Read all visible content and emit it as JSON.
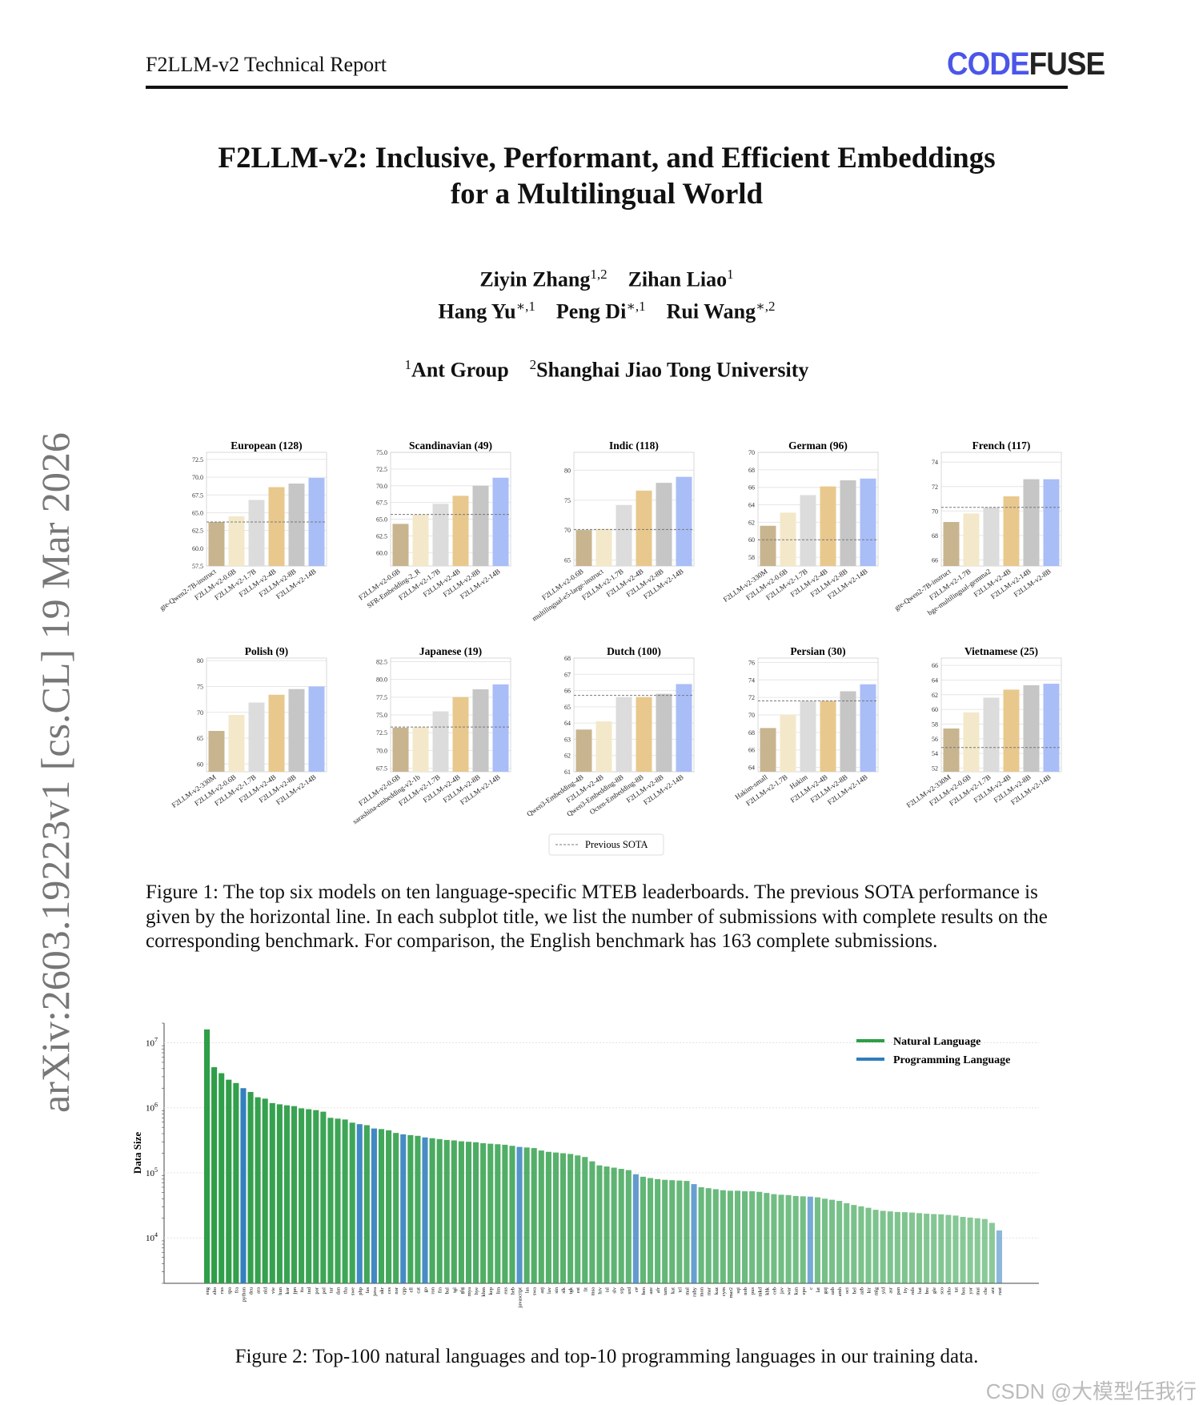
{
  "header": {
    "left": "F2LLM-v2 Technical Report",
    "logo_part1": "CODE",
    "logo_part2": "FUSE"
  },
  "title": {
    "line1": "F2LLM-v2: Inclusive, Performant, and Efficient Embeddings",
    "line2": "for a Multilingual World"
  },
  "authors": {
    "row1": [
      {
        "name": "Ziyin Zhang",
        "sup": "1,2"
      },
      {
        "name": "Zihan Liao",
        "sup": "1"
      }
    ],
    "row2": [
      {
        "name": "Hang Yu",
        "sup": "∗,1"
      },
      {
        "name": "Peng Di",
        "sup": "∗,1"
      },
      {
        "name": "Rui Wang",
        "sup": "∗,2"
      }
    ],
    "affiliations": [
      {
        "sup": "1",
        "name": "Ant Group"
      },
      {
        "sup": "2",
        "name": "Shanghai Jiao Tong University"
      }
    ]
  },
  "arxiv_id": "arXiv:2603.19223v1  [cs.CL]  19 Mar 2026",
  "figure1": {
    "legend": "Previous SOTA",
    "caption": "Figure 1: The top six models on ten language-specific MTEB leaderboards. The previous SOTA performance is given by the horizontal line. In each subplot title, we list the number of submissions with complete results on the corresponding benchmark. For comparison, the English benchmark has 163 complete submissions."
  },
  "figure2": {
    "caption": "Figure 2: Top-100 natural languages and top-10 programming languages in our training data."
  },
  "watermark": "CSDN @大模型任我行",
  "colors": {
    "bar_colors": [
      "#c8b58f",
      "#f3e8c9",
      "#dcdcdc",
      "#e8c88d",
      "#c6c6c6",
      "#a9bef7"
    ],
    "natural": "#2e9e48",
    "programming": "#2f7dbd"
  },
  "chart_data": [
    {
      "type": "bar",
      "title": "European (128)",
      "categories": [
        "gte-Qwen2-7B-instruct",
        "F2LLM-v2-0.6B",
        "F2LLM-v2-1.7B",
        "F2LLM-v2-4B",
        "F2LLM-v2-8B",
        "F2LLM-v2-14B"
      ],
      "values": [
        63.7,
        64.5,
        66.8,
        68.6,
        69.1,
        69.9
      ],
      "yticks": [
        57.5,
        60.0,
        62.5,
        65.0,
        67.5,
        70.0,
        72.5
      ],
      "ytick_labels": [
        "57.5",
        "60.0",
        "62.5",
        "65.0",
        "67.5",
        "70.0",
        "72.5"
      ],
      "ylim": [
        57.5,
        73.5
      ],
      "sota": 63.7
    },
    {
      "type": "bar",
      "title": "Scandinavian (49)",
      "categories": [
        "F2LLM-v2-0.6B",
        "SFR-Embedding-2_R",
        "F2LLM-v2-1.7B",
        "F2LLM-v2-4B",
        "F2LLM-v2-8B",
        "F2LLM-v2-14B"
      ],
      "values": [
        64.3,
        65.7,
        67.3,
        68.5,
        70.0,
        71.2
      ],
      "yticks": [
        60.0,
        62.5,
        65.0,
        67.5,
        70.0,
        72.5,
        75.0
      ],
      "ytick_labels": [
        "60.0",
        "62.5",
        "65.0",
        "67.5",
        "70.0",
        "72.5",
        "75.0"
      ],
      "ylim": [
        58.0,
        75.0
      ],
      "sota": 65.7
    },
    {
      "type": "bar",
      "title": "Indic (118)",
      "categories": [
        "F2LLM-v2-0.6B",
        "multilingual-e5-large-instruct",
        "F2LLM-v2-1.7B",
        "F2LLM-v2-4B",
        "F2LLM-v2-8B",
        "F2LLM-v2-14B"
      ],
      "values": [
        70.0,
        70.2,
        74.2,
        76.6,
        77.9,
        78.9
      ],
      "yticks": [
        65,
        70,
        75,
        80
      ],
      "ytick_labels": [
        "65",
        "70",
        "75",
        "80"
      ],
      "ylim": [
        64,
        83
      ],
      "sota": 70.1
    },
    {
      "type": "bar",
      "title": "German (96)",
      "categories": [
        "F2LLM-v2-330M",
        "F2LLM-v2-0.6B",
        "F2LLM-v2-1.7B",
        "F2LLM-v2-4B",
        "F2LLM-v2-8B",
        "F2LLM-v2-14B"
      ],
      "values": [
        61.6,
        63.1,
        65.1,
        66.1,
        66.8,
        67.0
      ],
      "yticks": [
        58,
        60,
        62,
        64,
        66,
        68,
        70
      ],
      "ytick_labels": [
        "58",
        "60",
        "62",
        "64",
        "66",
        "68",
        "70"
      ],
      "ylim": [
        57,
        70
      ],
      "sota": 60.0
    },
    {
      "type": "bar",
      "title": "French (117)",
      "categories": [
        "gte-Qwen2-7B-instruct",
        "F2LLM-v2-1.7B",
        "bge-multilingual-gemma2",
        "F2LLM-v2-4B",
        "F2LLM-v2-14B",
        "F2LLM-v2-8B"
      ],
      "values": [
        69.1,
        69.8,
        70.3,
        71.2,
        72.6,
        72.6
      ],
      "yticks": [
        66,
        68,
        70,
        72,
        74
      ],
      "ytick_labels": [
        "66",
        "68",
        "70",
        "72",
        "74"
      ],
      "ylim": [
        65.5,
        74.8
      ],
      "sota": 70.3
    },
    {
      "type": "bar",
      "title": "Polish (9)",
      "categories": [
        "F2LLM-v2-330M",
        "F2LLM-v2-0.6B",
        "F2LLM-v2-1.7B",
        "F2LLM-v2-4B",
        "F2LLM-v2-8B",
        "F2LLM-v2-14B"
      ],
      "values": [
        66.4,
        69.5,
        71.9,
        73.4,
        74.5,
        75.0
      ],
      "yticks": [
        60,
        65,
        70,
        75,
        80
      ],
      "ytick_labels": [
        "60",
        "65",
        "70",
        "75",
        "80"
      ],
      "ylim": [
        58.5,
        80.5
      ]
    },
    {
      "type": "bar",
      "title": "Japanese (19)",
      "categories": [
        "F2LLM-v2-0.6B",
        "sarashina-embedding-v2-1b",
        "F2LLM-v2-1.7B",
        "F2LLM-v2-4B",
        "F2LLM-v2-8B",
        "F2LLM-v2-14B"
      ],
      "values": [
        73.2,
        73.3,
        75.5,
        77.5,
        78.6,
        79.3
      ],
      "yticks": [
        67.5,
        70.0,
        72.5,
        75.0,
        77.5,
        80.0,
        82.5
      ],
      "ytick_labels": [
        "67.5",
        "70.0",
        "72.5",
        "75.0",
        "77.5",
        "80.0",
        "82.5"
      ],
      "ylim": [
        67,
        83
      ],
      "sota": 73.3
    },
    {
      "type": "bar",
      "title": "Dutch (100)",
      "categories": [
        "Qwen3-Embedding-4B",
        "F2LLM-v2-4B",
        "Qwen3-Embedding-8B",
        "Octen-Embedding-8B",
        "F2LLM-v2-8B",
        "F2LLM-v2-14B"
      ],
      "values": [
        63.6,
        64.1,
        65.6,
        65.6,
        65.8,
        66.4
      ],
      "yticks": [
        61,
        62,
        63,
        64,
        65,
        66,
        67,
        68
      ],
      "ytick_labels": [
        "61",
        "62",
        "63",
        "64",
        "65",
        "66",
        "67",
        "68"
      ],
      "ylim": [
        61,
        68
      ],
      "sota": 65.7
    },
    {
      "type": "bar",
      "title": "Persian (30)",
      "categories": [
        "Hakim-small",
        "F2LLM-v2-1.7B",
        "Hakim",
        "F2LLM-v2-4B",
        "F2LLM-v2-8B",
        "F2LLM-v2-14B"
      ],
      "values": [
        68.5,
        70.0,
        71.6,
        71.6,
        72.7,
        73.5
      ],
      "yticks": [
        64,
        66,
        68,
        70,
        72,
        74,
        76
      ],
      "ytick_labels": [
        "64",
        "66",
        "68",
        "70",
        "72",
        "74",
        "76"
      ],
      "ylim": [
        63.5,
        76.5
      ],
      "sota": 71.6
    },
    {
      "type": "bar",
      "title": "Vietnamese (25)",
      "categories": [
        "F2LLM-v2-330M",
        "F2LLM-v2-0.6B",
        "F2LLM-v2-1.7B",
        "F2LLM-v2-4B",
        "F2LLM-v2-8B",
        "F2LLM-v2-14B"
      ],
      "values": [
        57.4,
        59.6,
        61.6,
        62.7,
        63.3,
        63.5
      ],
      "yticks": [
        52,
        54,
        56,
        58,
        60,
        62,
        64,
        66
      ],
      "ytick_labels": [
        "52",
        "54",
        "56",
        "58",
        "60",
        "62",
        "64",
        "66"
      ],
      "ylim": [
        51.5,
        67
      ],
      "sota": 54.8
    },
    {
      "type": "bar",
      "title": "",
      "ylabel": "Data Size",
      "yscale": "log",
      "ylim": [
        2000,
        20000000
      ],
      "yticks": [
        10000,
        100000,
        1000000,
        10000000
      ],
      "ytick_labels": [
        "10^4",
        "10^5",
        "10^6",
        "10^7"
      ],
      "legend": [
        {
          "name": "Natural Language",
          "key": "natural"
        },
        {
          "name": "Programming Language",
          "key": "programming"
        }
      ],
      "categories": [
        "eng",
        "zho",
        "rus",
        "spa",
        "fra",
        "python",
        "deu",
        "ara",
        "nld",
        "vie",
        "hun",
        "kor",
        "jpn",
        "ita",
        "ind",
        "por",
        "pol",
        "tur",
        "dan",
        "tha",
        "swe",
        "php",
        "fas",
        "java",
        "ukr",
        "ces",
        "nor",
        "cpp",
        "ell",
        "cat",
        "go",
        "ron",
        "fin",
        "bul",
        "tgl",
        "glg",
        "mya",
        "hye",
        "khm",
        "kep",
        "lim",
        "eus",
        "heb",
        "javascript",
        "las",
        "swa",
        "azj",
        "lav",
        "sin",
        "slk",
        "tgk",
        "est",
        "lit",
        "msa",
        "hrv",
        "isl",
        "slv",
        "srp",
        "urd",
        "c#",
        "ben",
        "aze",
        "afr",
        "tam",
        "kat",
        "tel",
        "mal",
        "ruby",
        "mon",
        "mar",
        "kaz",
        "cym",
        "mar2",
        "sqi",
        "nob",
        "pus",
        "mkd",
        "khk",
        "ceb",
        "jav",
        "war",
        "kan",
        "epo",
        "c",
        "lat",
        "guj",
        "uzb",
        "amh",
        "oci",
        "bel",
        "azb",
        "kir",
        "mlg",
        "yid",
        "asr",
        "pan",
        "fry",
        "nds",
        "hat",
        "bre",
        "gle",
        "sco",
        "xho",
        "tat",
        "bos",
        "yor",
        "mai",
        "che",
        "arz",
        "rust"
      ],
      "values": [
        16000000,
        4200000,
        3400000,
        2700000,
        2400000,
        2000000,
        1750000,
        1450000,
        1380000,
        1180000,
        1130000,
        1090000,
        1060000,
        980000,
        950000,
        920000,
        870000,
        700000,
        680000,
        660000,
        590000,
        560000,
        540000,
        480000,
        470000,
        450000,
        410000,
        390000,
        380000,
        370000,
        350000,
        340000,
        330000,
        320000,
        315000,
        305000,
        300000,
        295000,
        285000,
        280000,
        275000,
        270000,
        260000,
        250000,
        245000,
        240000,
        220000,
        210000,
        205000,
        200000,
        195000,
        185000,
        175000,
        150000,
        130000,
        125000,
        120000,
        115000,
        110000,
        95000,
        87000,
        83000,
        80000,
        78000,
        77000,
        76000,
        75000,
        67000,
        60000,
        58000,
        56000,
        54000,
        53000,
        53000,
        52000,
        52000,
        51000,
        49000,
        47000,
        46000,
        45500,
        44000,
        43500,
        43000,
        42000,
        40000,
        38500,
        37000,
        34000,
        32000,
        30500,
        29000,
        27000,
        26000,
        25500,
        25000,
        24800,
        24500,
        24000,
        23500,
        23200,
        23000,
        22500,
        22000,
        21000,
        20500,
        20000,
        19500,
        17000,
        13000
      ],
      "kinds": [
        "n",
        "n",
        "n",
        "n",
        "n",
        "p",
        "n",
        "n",
        "n",
        "n",
        "n",
        "n",
        "n",
        "n",
        "n",
        "n",
        "n",
        "n",
        "n",
        "n",
        "n",
        "p",
        "n",
        "p",
        "n",
        "n",
        "n",
        "p",
        "n",
        "n",
        "p",
        "n",
        "n",
        "n",
        "n",
        "n",
        "n",
        "n",
        "n",
        "n",
        "n",
        "n",
        "n",
        "p",
        "n",
        "n",
        "n",
        "n",
        "n",
        "n",
        "n",
        "n",
        "n",
        "n",
        "n",
        "n",
        "n",
        "n",
        "n",
        "p",
        "n",
        "n",
        "n",
        "n",
        "n",
        "n",
        "n",
        "p",
        "n",
        "n",
        "n",
        "n",
        "n",
        "n",
        "n",
        "n",
        "n",
        "n",
        "n",
        "n",
        "n",
        "n",
        "n",
        "p",
        "n",
        "n",
        "n",
        "n",
        "n",
        "n",
        "n",
        "n",
        "n",
        "n",
        "n",
        "n",
        "n",
        "n",
        "n",
        "n",
        "n",
        "n",
        "n",
        "n",
        "n",
        "n",
        "n",
        "n",
        "n",
        "p"
      ]
    }
  ]
}
